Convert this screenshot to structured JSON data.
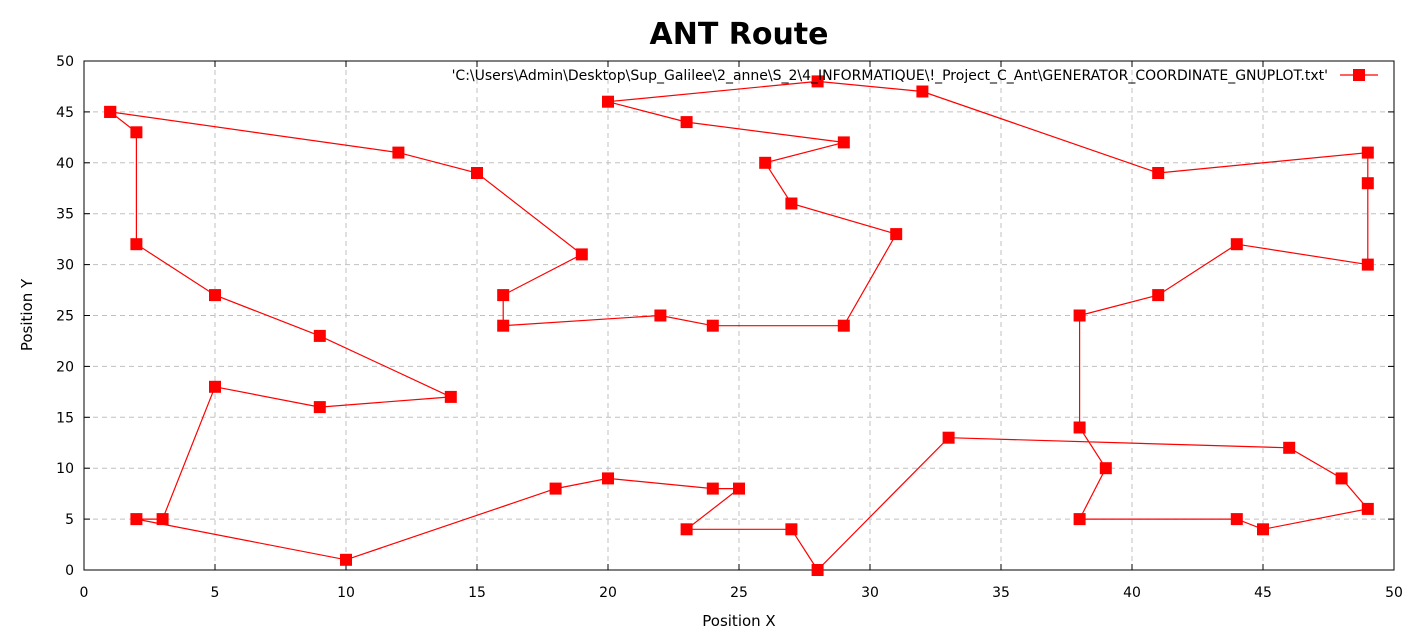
{
  "chart_data": {
    "type": "line",
    "title": "ANT Route",
    "xlabel": "Position X",
    "ylabel": "Position Y",
    "xlim": [
      0,
      50
    ],
    "ylim": [
      0,
      50
    ],
    "xticks": [
      "0",
      "5",
      "10",
      "15",
      "20",
      "25",
      "30",
      "35",
      "40",
      "45",
      "50"
    ],
    "yticks": [
      "0",
      "5",
      "10",
      "15",
      "20",
      "25",
      "30",
      "35",
      "40",
      "45",
      "50"
    ],
    "grid": true,
    "legend_position": "top-right",
    "series": [
      {
        "name": "'C:\\Users\\Admin\\Desktop\\Sup_Galilee\\2_anne\\S_2\\4_INFORMATIQUE\\!_Project_C_Ant\\GENERATOR_COORDINATE_GNUPLOT.txt'",
        "color": "#ff0000",
        "points": [
          [
            1,
            45
          ],
          [
            12,
            41
          ],
          [
            15,
            39
          ],
          [
            19,
            31
          ],
          [
            16,
            27
          ],
          [
            16,
            24
          ],
          [
            22,
            25
          ],
          [
            24,
            24
          ],
          [
            29,
            24
          ],
          [
            31,
            33
          ],
          [
            27,
            36
          ],
          [
            26,
            40
          ],
          [
            29,
            42
          ],
          [
            23,
            44
          ],
          [
            20,
            46
          ],
          [
            28,
            48
          ],
          [
            32,
            47
          ],
          [
            41,
            39
          ],
          [
            49,
            41
          ],
          [
            49,
            38
          ],
          [
            49,
            30
          ],
          [
            44,
            32
          ],
          [
            41,
            27
          ],
          [
            38,
            25
          ],
          [
            38,
            14
          ],
          [
            39,
            10
          ],
          [
            38,
            5
          ],
          [
            44,
            5
          ],
          [
            45,
            4
          ],
          [
            49,
            6
          ],
          [
            48,
            9
          ],
          [
            46,
            12
          ],
          [
            33,
            13
          ],
          [
            28,
            0
          ],
          [
            27,
            4
          ],
          [
            23,
            4
          ],
          [
            25,
            8
          ],
          [
            24,
            8
          ],
          [
            20,
            9
          ],
          [
            18,
            8
          ],
          [
            10,
            1
          ],
          [
            2,
            5
          ],
          [
            3,
            5
          ],
          [
            5,
            18
          ],
          [
            9,
            16
          ],
          [
            14,
            17
          ],
          [
            9,
            23
          ],
          [
            5,
            27
          ],
          [
            2,
            32
          ],
          [
            2,
            43
          ],
          [
            1,
            45
          ]
        ]
      }
    ]
  }
}
